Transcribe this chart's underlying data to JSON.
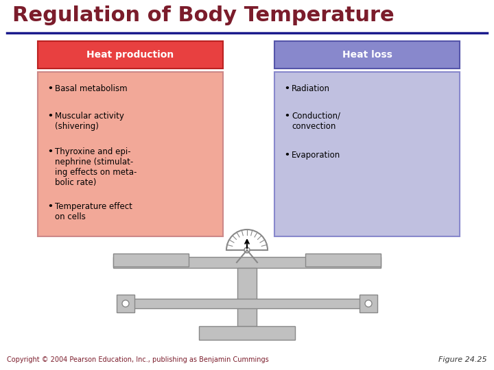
{
  "title": "Regulation of Body Temperature",
  "title_color": "#7B1C2B",
  "title_fontsize": 22,
  "underline_color": "#1a1a8c",
  "bg_color": "#ffffff",
  "heat_prod_header_color": "#e84040",
  "heat_prod_body_color": "#f2a898",
  "heat_prod_header_text": "Heat production",
  "heat_prod_items": [
    "Basal metabolism",
    "Muscular activity\n(shivering)",
    "Thyroxine and epi-\nnephrine (stimulat-\ning effects on meta-\nbolic rate)",
    "Temperature effect\non cells"
  ],
  "heat_loss_header_color": "#8888cc",
  "heat_loss_body_color": "#c0c0e0",
  "heat_loss_header_text": "Heat loss",
  "heat_loss_items": [
    "Radiation",
    "Conduction/\nconvection",
    "Evaporation"
  ],
  "scale_color": "#c0c0c0",
  "scale_edge": "#888888",
  "footer_text": "Copyright © 2004 Pearson Education, Inc., publishing as Benjamin Cummings",
  "figure_label": "Figure 24.25",
  "footer_color": "#7B1C2B",
  "footer_fontsize": 7
}
